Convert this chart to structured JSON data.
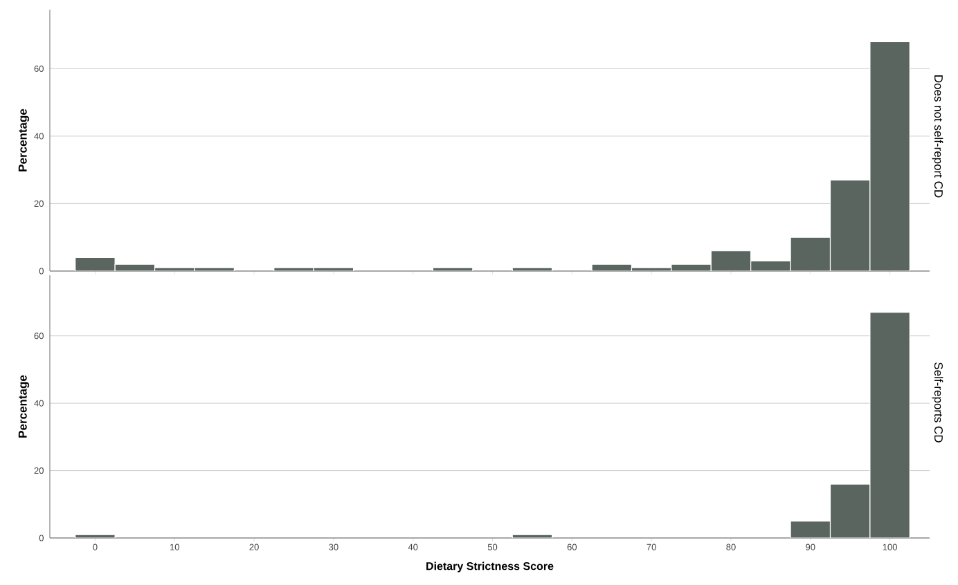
{
  "chart_data": [
    {
      "type": "histogram",
      "title": "Does not self-report CD",
      "ylabel": "Percentage",
      "bins": [
        -2.5,
        2.5,
        7.5,
        12.5,
        17.5,
        22.5,
        27.5,
        32.5,
        37.5,
        42.5,
        47.5,
        52.5,
        57.5,
        62.5,
        67.5,
        72.5,
        77.5,
        82.5,
        87.5,
        92.5,
        97.5,
        102.5
      ],
      "values": [
        4,
        2,
        1,
        1,
        0,
        1,
        1,
        0,
        0,
        1,
        0,
        1,
        0,
        2,
        1,
        2,
        6,
        3,
        10,
        27,
        68
      ],
      "color": "#5a6560",
      "xlim": [
        -5.7,
        105
      ],
      "xticks": [
        0,
        10,
        20,
        30,
        40,
        50,
        60,
        70,
        80,
        90,
        100
      ],
      "ylim": [
        0,
        77.5
      ],
      "yticks": [
        0,
        20,
        40,
        60
      ],
      "grid": "y",
      "tick_labels": "y"
    },
    {
      "type": "histogram",
      "title": "Self-reports CD",
      "xlabel": "Dietary Strictness Score",
      "ylabel": "Percentage",
      "bins": [
        -2.5,
        2.5,
        7.5,
        12.5,
        17.5,
        22.5,
        27.5,
        32.5,
        37.5,
        42.5,
        47.5,
        52.5,
        57.5,
        62.5,
        67.5,
        72.5,
        77.5,
        82.5,
        87.5,
        92.5,
        97.5,
        102.5
      ],
      "values": [
        1,
        0,
        0,
        0,
        0,
        0,
        0,
        0,
        0,
        0,
        0,
        1,
        0,
        0,
        0,
        0,
        0,
        0,
        5,
        16,
        67
      ],
      "color": "#5a6560",
      "xlim": [
        -5.7,
        105
      ],
      "xticks": [
        0,
        10,
        20,
        30,
        40,
        50,
        60,
        70,
        80,
        90,
        100
      ],
      "ylim": [
        0,
        78
      ],
      "yticks": [
        0,
        20,
        40,
        60
      ],
      "grid": "y"
    }
  ]
}
